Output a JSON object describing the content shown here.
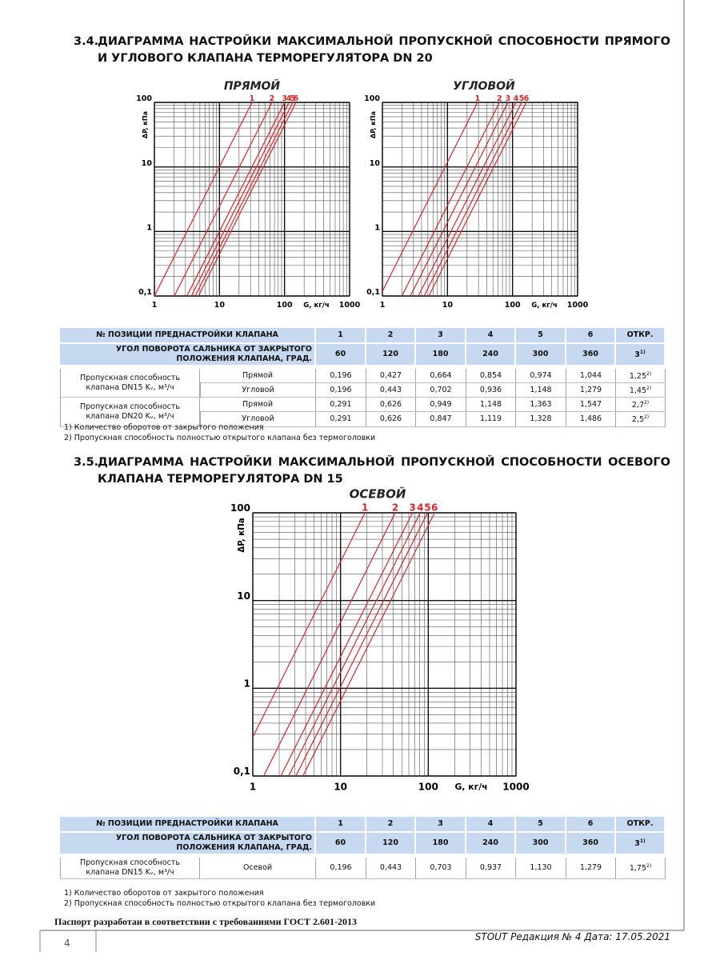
{
  "section_34": {
    "number": "3.4.",
    "title": "ДИАГРАММА НАСТРОЙКИ МАКСИМАЛЬНОЙ ПРОПУСКНОЙ СПОСОБНОСТИ ПРЯМОГО И УГЛОВОГО КЛАПАНА ТЕРМОРЕГУЛЯТОРА DN 20"
  },
  "chart_data": [
    {
      "type": "line",
      "title": "ПРЯМОЙ",
      "x_label": "G, кг/ч",
      "y_label": "ΔP, кПа",
      "log_x": true,
      "log_y": true,
      "grid": true,
      "xlim": [
        1,
        1000
      ],
      "ylim": [
        0.1,
        100
      ],
      "xticks": [
        1,
        10,
        100,
        1000
      ],
      "yticks": [
        {
          "value": 0.1,
          "label": "0,1"
        },
        1,
        10,
        100
      ],
      "series": [
        {
          "name": "1",
          "color": "#d9262b",
          "x": [
            1,
            31.6
          ],
          "values": [
            0.1,
            100
          ]
        },
        {
          "name": "2",
          "color": "#d9262b",
          "x": [
            2.02,
            64
          ],
          "values": [
            0.1,
            100
          ]
        },
        {
          "name": "3",
          "color": "#d9262b",
          "x": [
            3.16,
            100
          ],
          "values": [
            0.1,
            100
          ]
        },
        {
          "name": "4",
          "color": "#d9262b",
          "x": [
            3.7,
            117
          ],
          "values": [
            0.1,
            100
          ]
        },
        {
          "name": "5",
          "color": "#d9262b",
          "x": [
            4.24,
            134
          ],
          "values": [
            0.1,
            100
          ]
        },
        {
          "name": "6",
          "color": "#d9262b",
          "x": [
            4.74,
            150
          ],
          "values": [
            0.1,
            100
          ]
        }
      ]
    },
    {
      "type": "line",
      "title": "УГЛОВОЙ",
      "x_label": "G, кг/ч",
      "y_label": "ΔP, кПа",
      "log_x": true,
      "log_y": true,
      "grid": true,
      "xlim": [
        1,
        1000
      ],
      "ylim": [
        0.1,
        100
      ],
      "xticks": [
        1,
        10,
        100,
        1000
      ],
      "yticks": [
        {
          "value": 0.1,
          "label": "0,1"
        },
        1,
        10,
        100
      ],
      "series": [
        {
          "name": "1",
          "color": "#d9262b",
          "x": [
            0.92,
            29
          ],
          "values": [
            0.1,
            100
          ]
        },
        {
          "name": "2",
          "color": "#d9262b",
          "x": [
            1.99,
            63
          ],
          "values": [
            0.1,
            100
          ]
        },
        {
          "name": "3",
          "color": "#d9262b",
          "x": [
            2.69,
            85
          ],
          "values": [
            0.1,
            100
          ]
        },
        {
          "name": "4",
          "color": "#d9262b",
          "x": [
            3.57,
            113
          ],
          "values": [
            0.1,
            100
          ]
        },
        {
          "name": "5",
          "color": "#d9262b",
          "x": [
            4.37,
            138
          ],
          "values": [
            0.1,
            100
          ]
        },
        {
          "name": "6",
          "color": "#d9262b",
          "x": [
            5.15,
            163
          ],
          "values": [
            0.1,
            100
          ]
        }
      ]
    },
    {
      "type": "line",
      "title": "ОСЕВОЙ",
      "x_label": "G, кг/ч",
      "y_label": "ΔP, кПа",
      "log_x": true,
      "log_y": true,
      "grid": true,
      "xlim": [
        1,
        1000
      ],
      "ylim": [
        0.1,
        100
      ],
      "xticks": [
        1,
        10,
        100,
        1000
      ],
      "yticks": [
        {
          "value": 0.1,
          "label": "0,1"
        },
        1,
        10,
        100
      ],
      "series": [
        {
          "name": "1",
          "color": "#d9262b",
          "x": [
            0.6,
            19
          ],
          "values": [
            0.1,
            100
          ]
        },
        {
          "name": "2",
          "color": "#d9262b",
          "x": [
            1.33,
            42
          ],
          "values": [
            0.1,
            100
          ]
        },
        {
          "name": "3",
          "color": "#d9262b",
          "x": [
            2.09,
            66
          ],
          "values": [
            0.1,
            100
          ]
        },
        {
          "name": "4",
          "color": "#d9262b",
          "x": [
            2.56,
            81
          ],
          "values": [
            0.1,
            100
          ]
        },
        {
          "name": "5",
          "color": "#d9262b",
          "x": [
            3.1,
            98
          ],
          "values": [
            0.1,
            100
          ]
        },
        {
          "name": "6",
          "color": "#d9262b",
          "x": [
            3.73,
            118
          ],
          "values": [
            0.1,
            100
          ]
        }
      ]
    }
  ],
  "table_34": {
    "header": [
      "№ ПОЗИЦИИ ПРЕДНАСТРОЙКИ КЛАПАНА",
      "1",
      "2",
      "3",
      "4",
      "5",
      "6",
      "ОТКР."
    ],
    "header2": [
      "УГОЛ ПОВОРОТА САЛЬНИКА ОТ ЗАКРЫТОГО ПОЛОЖЕНИЯ КЛАПАНА, ГРАД.",
      "60",
      "120",
      "180",
      "240",
      "300",
      "360",
      {
        "text": "3",
        "sup": "1)"
      }
    ],
    "groups": [
      {
        "label": "Пропускная способность клапана DN15 Kᵥ, м³/ч",
        "rows": [
          [
            "Прямой",
            "0,196",
            "0,427",
            "0,664",
            "0,854",
            "0,974",
            "1,044",
            {
              "text": "1,25",
              "sup": "2)"
            }
          ],
          [
            "Угловой",
            "0,196",
            "0,443",
            "0,702",
            "0,936",
            "1,148",
            "1,279",
            {
              "text": "1,45",
              "sup": "2)"
            }
          ]
        ]
      },
      {
        "label": "Пропускная способность клапана DN20 Kᵥ, м³/ч",
        "rows": [
          [
            "Прямой",
            "0,291",
            "0,626",
            "0,949",
            "1,148",
            "1,363",
            "1,547",
            {
              "text": "2,7",
              "sup": "2)"
            }
          ],
          [
            "Угловой",
            "0,291",
            "0,626",
            "0,847",
            "1,119",
            "1,328",
            "1,486",
            {
              "text": "2,5",
              "sup": "2)"
            }
          ]
        ]
      }
    ]
  },
  "notes_34": [
    "1) Количество оборотов от закрытого положения",
    "2) Пропускная способность полностью открытого клапана без термоголовки"
  ],
  "section_35": {
    "number": "3.5.",
    "title": "ДИАГРАММА НАСТРОЙКИ МАКСИМАЛЬНОЙ ПРОПУСКНОЙ СПОСОБНОСТИ ОСЕВОГО КЛАПАНА ТЕРМОРЕГУЛЯТОРА DN 15"
  },
  "table_35": {
    "header": [
      "№ ПОЗИЦИИ ПРЕДНАСТРОЙКИ КЛАПАНА",
      "1",
      "2",
      "3",
      "4",
      "5",
      "6",
      "ОТКР."
    ],
    "header2": [
      "УГОЛ ПОВОРОТА САЛЬНИКА ОТ ЗАКРЫТОГО ПОЛОЖЕНИЯ КЛАПАНА, ГРАД.",
      "60",
      "120",
      "180",
      "240",
      "300",
      "360",
      {
        "text": "3",
        "sup": "1)"
      }
    ],
    "groups": [
      {
        "label": "Пропускная способность клапана DN15 Kᵥ, м³/ч",
        "rows": [
          [
            "Осевой",
            "0,196",
            "0,443",
            "0,703",
            "0,937",
            "1,130",
            "1,279",
            {
              "text": "1,75",
              "sup": "2)"
            }
          ]
        ]
      }
    ]
  },
  "notes_35": [
    "1) Количество оборотов от закрытого положения",
    "2) Пропускная способность полностью открытого клапана без термоголовки"
  ],
  "footer": {
    "gost": "Паспорт разработан в соответствии с требованиями ГОСТ 2.601-2013",
    "revision": "STOUT Редакция № 4 Дата: 17.05.2021",
    "page": "4"
  }
}
